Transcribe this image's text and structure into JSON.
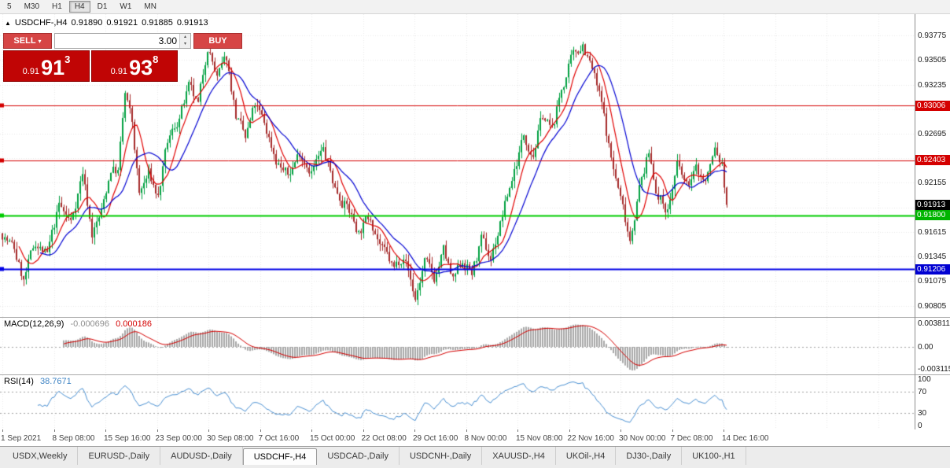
{
  "icons": {
    "symbol_arrow": "▲",
    "dropdown": "▾",
    "spin_up": "▴",
    "spin_down": "▾"
  },
  "toolbar": {
    "periods": [
      {
        "label": "5",
        "active": false
      },
      {
        "label": "M30",
        "active": false
      },
      {
        "label": "H1",
        "active": false
      },
      {
        "label": "H4",
        "active": true
      },
      {
        "label": "D1",
        "active": false
      },
      {
        "label": "W1",
        "active": false
      },
      {
        "label": "MN",
        "active": false
      }
    ]
  },
  "chart": {
    "header": {
      "symbol": "USDCHF-,H4",
      "open": "0.91890",
      "high": "0.91921",
      "low": "0.91885",
      "close": "0.91913"
    },
    "trade_panel": {
      "sell_label": "SELL",
      "buy_label": "BUY",
      "lot": "3.00",
      "sell_price_prefix": "0.91",
      "sell_price_big": "91",
      "sell_price_sup": "3",
      "buy_price_prefix": "0.91",
      "buy_price_big": "93",
      "buy_price_sup": "8"
    },
    "view": {
      "price_min": 0.9068,
      "price_max": 0.9401
    },
    "price_axis": {
      "labels": [
        "0.93775",
        "0.93505",
        "0.93235",
        "0.92965",
        "0.92695",
        "0.92425",
        "0.92155",
        "0.91885",
        "0.91615",
        "0.91345",
        "0.91075",
        "0.90805"
      ],
      "tags": [
        {
          "text": "0.93006",
          "price": 0.93006,
          "color": "#d40000"
        },
        {
          "text": "0.92403",
          "price": 0.92403,
          "color": "#d40000"
        },
        {
          "text": "0.91913",
          "price": 0.91913,
          "color": "#000000"
        },
        {
          "text": "0.91800",
          "price": 0.918,
          "color": "#00b400"
        },
        {
          "text": "0.91206",
          "price": 0.91206,
          "color": "#0000d2"
        }
      ]
    },
    "hlines": [
      {
        "price": 0.93006,
        "color": "#d40000",
        "width": 1
      },
      {
        "price": 0.92403,
        "color": "#d40000",
        "width": 1
      },
      {
        "price": 0.918,
        "color": "#00cc00",
        "width": 2
      },
      {
        "price": 0.91206,
        "color": "#0000e6",
        "width": 2
      }
    ],
    "time_axis": {
      "labels": [
        "1 Sep 2021",
        "8 Sep 08:00",
        "15 Sep 16:00",
        "23 Sep 00:00",
        "30 Sep 08:00",
        "7 Oct 16:00",
        "15 Oct 00:00",
        "22 Oct 08:00",
        "29 Oct 16:00",
        "8 Nov 00:00",
        "15 Nov 08:00",
        "22 Nov 16:00",
        "30 Nov 00:00",
        "7 Dec 08:00",
        "14 Dec 16:00"
      ]
    }
  },
  "indicators": {
    "macd": {
      "label": "MACD(12,26,9)",
      "value1": "-0.000696",
      "value2": "0.000186",
      "axis": [
        {
          "text": "0.003811",
          "pos": "top"
        },
        {
          "text": "0.00",
          "pos": "zero"
        },
        {
          "text": "-0.003115",
          "pos": "bottom"
        }
      ]
    },
    "rsi": {
      "label": "RSI(14)",
      "value": "38.7671",
      "axis": [
        "100",
        "70",
        "30",
        "0"
      ],
      "levels": [
        70,
        30
      ]
    }
  },
  "chart_data": {
    "type": "candlestick",
    "symbol": "USDCHF-",
    "timeframe": "H4",
    "title": "USDCHF-,H4",
    "y_axis_ticks": [
      "0.93775",
      "0.93505",
      "0.93235",
      "0.92965",
      "0.92695",
      "0.92425",
      "0.92155",
      "0.91885",
      "0.91615",
      "0.91345",
      "0.91075",
      "0.90805"
    ],
    "x_axis_ticks": [
      "1 Sep 2021",
      "8 Sep 08:00",
      "15 Sep 16:00",
      "23 Sep 00:00",
      "30 Sep 08:00",
      "7 Oct 16:00",
      "15 Oct 00:00",
      "22 Oct 08:00",
      "29 Oct 16:00",
      "8 Nov 00:00",
      "15 Nov 08:00",
      "22 Nov 16:00",
      "30 Nov 00:00",
      "7 Dec 08:00",
      "14 Dec 16:00"
    ],
    "price_range_view": [
      0.9068,
      0.9401
    ],
    "candle_count": 308,
    "last_ohlc": {
      "open": 0.9189,
      "high": 0.91921,
      "low": 0.91885,
      "close": 0.91913
    },
    "price_path_anchors": [
      [
        0,
        0.916
      ],
      [
        5,
        0.9142
      ],
      [
        9,
        0.9107
      ],
      [
        14,
        0.915
      ],
      [
        19,
        0.9135
      ],
      [
        24,
        0.919
      ],
      [
        29,
        0.9172
      ],
      [
        34,
        0.9228
      ],
      [
        38,
        0.916
      ],
      [
        42,
        0.9182
      ],
      [
        46,
        0.9232
      ],
      [
        49,
        0.9228
      ],
      [
        52,
        0.9312
      ],
      [
        55,
        0.928
      ],
      [
        58,
        0.9202
      ],
      [
        62,
        0.9225
      ],
      [
        66,
        0.92
      ],
      [
        70,
        0.9258
      ],
      [
        75,
        0.9288
      ],
      [
        79,
        0.9318
      ],
      [
        83,
        0.9298
      ],
      [
        87,
        0.9368
      ],
      [
        91,
        0.933
      ],
      [
        95,
        0.9352
      ],
      [
        99,
        0.929
      ],
      [
        103,
        0.9262
      ],
      [
        107,
        0.93
      ],
      [
        111,
        0.928
      ],
      [
        116,
        0.9242
      ],
      [
        121,
        0.9222
      ],
      [
        126,
        0.925
      ],
      [
        131,
        0.923
      ],
      [
        136,
        0.925
      ],
      [
        141,
        0.921
      ],
      [
        146,
        0.919
      ],
      [
        151,
        0.9162
      ],
      [
        156,
        0.918
      ],
      [
        161,
        0.9142
      ],
      [
        166,
        0.912
      ],
      [
        170,
        0.914
      ],
      [
        175,
        0.9088
      ],
      [
        179,
        0.9128
      ],
      [
        183,
        0.911
      ],
      [
        187,
        0.914
      ],
      [
        191,
        0.9105
      ],
      [
        195,
        0.913
      ],
      [
        199,
        0.9116
      ],
      [
        203,
        0.915
      ],
      [
        207,
        0.9132
      ],
      [
        212,
        0.918
      ],
      [
        217,
        0.923
      ],
      [
        221,
        0.9268
      ],
      [
        225,
        0.925
      ],
      [
        229,
        0.929
      ],
      [
        233,
        0.9272
      ],
      [
        237,
        0.9318
      ],
      [
        241,
        0.9348
      ],
      [
        246,
        0.937
      ],
      [
        250,
        0.934
      ],
      [
        254,
        0.93
      ],
      [
        258,
        0.9242
      ],
      [
        262,
        0.9198
      ],
      [
        266,
        0.9155
      ],
      [
        270,
        0.921
      ],
      [
        274,
        0.9248
      ],
      [
        278,
        0.92
      ],
      [
        282,
        0.9186
      ],
      [
        286,
        0.9234
      ],
      [
        290,
        0.921
      ],
      [
        294,
        0.923
      ],
      [
        298,
        0.9216
      ],
      [
        302,
        0.9252
      ],
      [
        305,
        0.9234
      ],
      [
        307,
        0.9191
      ]
    ],
    "horizontal_lines": [
      {
        "price": 0.93006,
        "color": "red"
      },
      {
        "price": 0.92403,
        "color": "red"
      },
      {
        "price": 0.918,
        "color": "green"
      },
      {
        "price": 0.91206,
        "color": "blue"
      }
    ],
    "ma_periods": {
      "fast": 8,
      "slow": 17
    },
    "colors": {
      "candle_up": "#00a040",
      "candle_down": "#a52a2a",
      "ma_fast": "#e00000",
      "ma_slow": "#0000d2",
      "macd_histogram": "#a8a8a8",
      "macd_signal": "#d40000",
      "rsi_line": "#4a90d2",
      "grid": "#e7e7e7",
      "level_dash": "#a0a0a0"
    },
    "indicators": [
      {
        "name": "MACD",
        "params": [
          12,
          26,
          9
        ],
        "current_values": [
          -0.000696,
          0.000186
        ],
        "axis": [
          0.003811,
          0,
          -0.003115
        ]
      },
      {
        "name": "RSI",
        "params": [
          14
        ],
        "current_value": 38.7671,
        "levels": [
          30,
          70
        ]
      }
    ]
  },
  "tabs": [
    {
      "label": "USDX,Weekly",
      "active": false
    },
    {
      "label": "EURUSD-,Daily",
      "active": false
    },
    {
      "label": "AUDUSD-,Daily",
      "active": false
    },
    {
      "label": "USDCHF-,H4",
      "active": true
    },
    {
      "label": "USDCAD-,Daily",
      "active": false
    },
    {
      "label": "USDCNH-,Daily",
      "active": false
    },
    {
      "label": "XAUUSD-,H4",
      "active": false
    },
    {
      "label": "UKOil-,H4",
      "active": false
    },
    {
      "label": "DJ30-,Daily",
      "active": false
    },
    {
      "label": "UK100-,H1",
      "active": false
    }
  ]
}
